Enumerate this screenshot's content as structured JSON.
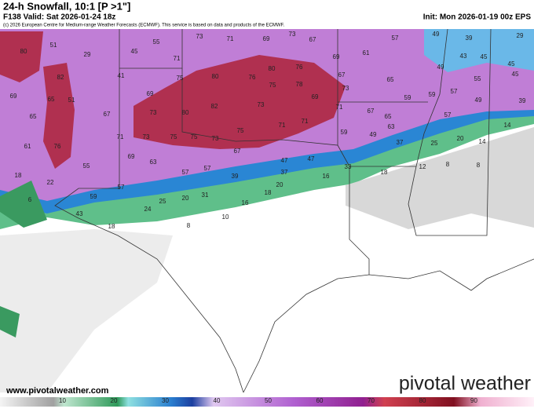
{
  "header": {
    "title": "24-h Snowfall, 10:1 [P >1\"]",
    "valid": "F138 Valid: Sat 2026-01-24 18z",
    "copyright": "(c) 2026 European Centre for Medium-range Weather Forecasts (ECMWF). This service is based on data and products of the ECMWF.",
    "init": "Init: Mon 2026-01-19 00z EPS"
  },
  "map": {
    "labels": [
      80,
      51,
      29,
      45,
      55,
      73,
      71,
      69,
      73,
      67,
      57,
      49,
      39,
      29,
      69,
      61,
      43,
      45,
      45,
      71,
      41,
      82,
      80,
      76,
      67,
      65,
      49,
      55,
      45,
      75,
      80,
      76,
      75,
      78,
      73,
      57,
      59,
      59,
      49,
      39,
      69,
      65,
      51,
      69,
      69,
      71,
      67,
      65,
      57,
      82,
      73,
      65,
      67,
      80,
      73,
      71,
      71,
      63,
      14,
      61,
      76,
      71,
      73,
      75,
      75,
      73,
      75,
      59,
      49,
      37,
      25,
      20,
      14,
      67,
      69,
      63,
      47,
      47,
      33,
      8,
      8,
      18,
      22,
      55,
      57,
      57,
      39,
      37,
      16,
      18,
      12,
      57,
      20,
      18,
      59,
      6,
      25,
      20,
      31,
      16,
      24,
      43,
      10,
      8,
      18
    ]
  },
  "colorbar": {
    "ticks": [
      10,
      20,
      30,
      40,
      50,
      60,
      70,
      80,
      90
    ]
  },
  "footer": {
    "website": "www.pivotalweather.com",
    "logo": "pivotal weather"
  }
}
